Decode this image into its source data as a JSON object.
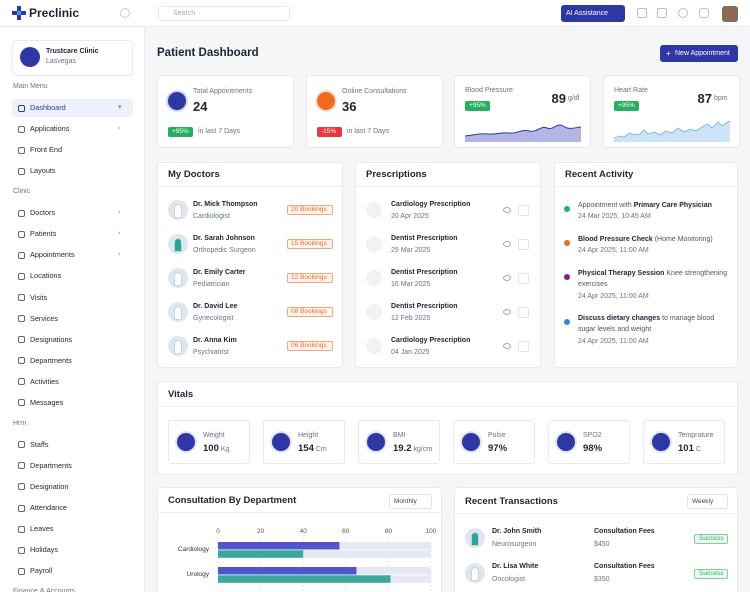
{
  "brand": "Preclinic",
  "search_placeholder": "Search",
  "ai_button": "AI Assistance",
  "clinic": {
    "name": "Trustcare Clinic",
    "location": "Lasvegas"
  },
  "sidebar": [
    {
      "title": "Main Menu",
      "items": [
        "Dashboard",
        "Applications",
        "Front End",
        "Layouts"
      ]
    },
    {
      "title": "Clinic",
      "items": [
        "Doctors",
        "Patients",
        "Appointments",
        "Locations",
        "Visits",
        "Services",
        "Designations",
        "Departments",
        "Activities",
        "Messages"
      ]
    },
    {
      "title": "Hrm",
      "items": [
        "Staffs",
        "Departments",
        "Designation",
        "Attendance",
        "Leaves",
        "Holidays",
        "Payroll"
      ]
    },
    {
      "title": "Finance & Accounts",
      "items": []
    }
  ],
  "page_title": "Patient Dashboard",
  "new_appointment": "New Appointment",
  "stats": [
    {
      "label": "Total Appointments",
      "value": "24",
      "change": "+95%",
      "period": "in last 7 Days",
      "color": "#2e37a4",
      "badge_color": "#27ae60"
    },
    {
      "label": "Online Consultations",
      "value": "36",
      "change": "-15%",
      "period": "in last 7 Days",
      "color": "#f26b22",
      "badge_color": "#e5393b"
    }
  ],
  "metrics": [
    {
      "label": "Blood Pressure",
      "value": "89",
      "unit": "g/dl",
      "change": "+95%"
    },
    {
      "label": "Heart Rate",
      "value": "87",
      "unit": "bpm",
      "change": "+95%"
    }
  ],
  "doctors": {
    "title": "My Doctors",
    "items": [
      {
        "name": "Dr. Mick Thompson",
        "specialty": "Cardiologist",
        "bookings": "20 Bookings"
      },
      {
        "name": "Dr. Sarah Johnson",
        "specialty": "Orthopedic Surgeon",
        "bookings": "15 Bookings"
      },
      {
        "name": "Dr. Emily Carter",
        "specialty": "Pediatrician",
        "bookings": "12 Bookings"
      },
      {
        "name": "Dr. David Lee",
        "specialty": "Gynecologist",
        "bookings": "08 Bookings"
      },
      {
        "name": "Dr. Anna Kim",
        "specialty": "Psychiatrist",
        "bookings": "06 Bookings"
      }
    ]
  },
  "prescriptions": {
    "title": "Prescriptions",
    "items": [
      {
        "name": "Cardiology Prescription",
        "date": "20 Apr 2025"
      },
      {
        "name": "Dentist Prescription",
        "date": "25 Mar 2025"
      },
      {
        "name": "Dentist Prescription",
        "date": "16 Mar 2025"
      },
      {
        "name": "Dentist Prescription",
        "date": "12 Feb 2025"
      },
      {
        "name": "Cardiology Prescription",
        "date": "04 Jan 2025"
      }
    ]
  },
  "activity": {
    "title": "Recent Activity",
    "items": [
      {
        "before": "Appointment with",
        "strong": "Primary Care Physician",
        "time": "24 Mar 2025, 10:45 AM",
        "color": "#27ae60"
      },
      {
        "strong": "Blood Pressure Check",
        "after": "(Home Monitoring)",
        "time": "24 Apr 2025, 11:00 AM",
        "color": "#f26b22"
      },
      {
        "strong": "Physical Therapy Session",
        "after": "Knee strengthening exercises",
        "time": "24 Apr 2025, 11:00 AM",
        "color": "#8e1a8a"
      },
      {
        "strong": "Discuss dietary changes",
        "after": "to manage blood sugar levels and weight",
        "time": "24 Apr 2025, 11:00 AM",
        "color": "#3b82d6"
      }
    ]
  },
  "vitals": {
    "title": "Vitals",
    "items": [
      {
        "label": "Weight",
        "value": "100",
        "unit": "Kg"
      },
      {
        "label": "Height",
        "value": "154",
        "unit": "Cm"
      },
      {
        "label": "BMI",
        "value": "19.2",
        "unit": "kg/cm"
      },
      {
        "label": "Pulse",
        "value": "97%"
      },
      {
        "label": "SPO2",
        "value": "98%"
      },
      {
        "label": "Temprature",
        "value": "101",
        "unit": "C"
      }
    ]
  },
  "consultation": {
    "title": "Consultation By Department",
    "period": "Monthly",
    "chart": {
      "type": "bar",
      "categories": [
        "Cardiology",
        "Urology"
      ],
      "xlim": [
        0,
        100
      ],
      "xticks": [
        0,
        20,
        40,
        60,
        80,
        100
      ],
      "series": [
        {
          "color": "#5155c9",
          "values": [
            57,
            65
          ]
        },
        {
          "color": "#3aa89b",
          "values": [
            40,
            81
          ]
        }
      ]
    }
  },
  "transactions": {
    "title": "Recent Transactions",
    "period": "Weekly",
    "items": [
      {
        "name": "Dr. John Smith",
        "role": "Neurosurgeon",
        "type": "Consultation Fees",
        "amount": "$450",
        "status": "Success"
      },
      {
        "name": "Dr. Lisa White",
        "role": "Oncologist",
        "type": "Consultation Fees",
        "amount": "$350",
        "status": "Success"
      }
    ]
  }
}
